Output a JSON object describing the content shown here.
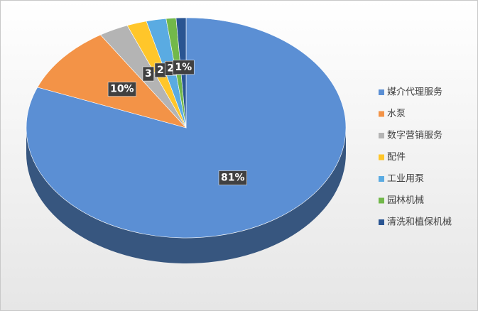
{
  "chart_data": {
    "type": "pie3d",
    "categories": [
      "媒介代理服务",
      "水泵",
      "数字营销服务",
      "配件",
      "工业用泵",
      "园林机械",
      "清洗和植保机械"
    ],
    "values": [
      81,
      10,
      3,
      2,
      2,
      1,
      1
    ],
    "value_labels": [
      "81%",
      "10%",
      "3",
      "2",
      "2",
      "1",
      "1%"
    ],
    "colors": [
      "#5b8fd4",
      "#f39347",
      "#b4b4b4",
      "#ffc62a",
      "#5aabe2",
      "#72b84a",
      "#2a5592"
    ],
    "legend": "right"
  }
}
